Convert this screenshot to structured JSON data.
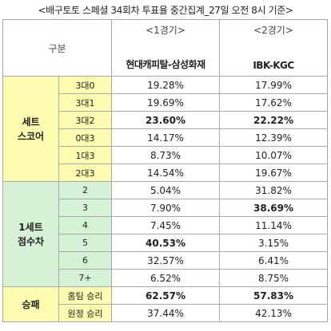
{
  "title": "<배구토토 스페셜 34회차 투표율 중간집계_27일 오전 8시 기준>",
  "header": {
    "label": "구분",
    "match1_ord": "<1경기>",
    "match1_teams": "현대캐피탈-삼성화재",
    "match2_ord": "<2경기>",
    "match2_teams": "IBK-KGC"
  },
  "groups": [
    {
      "label_lines": [
        "세트",
        "스코어"
      ],
      "rows": [
        {
          "label": "3대0",
          "m1": "19.28%",
          "m2": "17.99%"
        },
        {
          "label": "3대1",
          "m1": "19.69%",
          "m2": "17.62%"
        },
        {
          "label": "3대2",
          "m1": "23.60%",
          "m2": "22.22%"
        },
        {
          "label": "0대3",
          "m1": "14.17%",
          "m2": "12.39%"
        },
        {
          "label": "1대3",
          "m1": "8.73%",
          "m2": "10.07%"
        },
        {
          "label": "2대3",
          "m1": "14.54%",
          "m2": "19.67%"
        }
      ]
    },
    {
      "label_lines": [
        "1세트",
        "점수차"
      ],
      "rows": [
        {
          "label": "2",
          "m1": "5.04%",
          "m2": "31.82%"
        },
        {
          "label": "3",
          "m1": "7.90%",
          "m2": "38.69%"
        },
        {
          "label": "4",
          "m1": "7.45%",
          "m2": "11.14%"
        },
        {
          "label": "5",
          "m1": "40.53%",
          "m2": "3.15%"
        },
        {
          "label": "6",
          "m1": "32.57%",
          "m2": "6.41%"
        },
        {
          "label": "7+",
          "m1": "6.52%",
          "m2": "8.75%"
        }
      ]
    },
    {
      "label_lines": [
        "승패"
      ],
      "rows": [
        {
          "label": "홈팀 승리",
          "m1": "62.57%",
          "m2": "57.83%"
        },
        {
          "label": "원정 승리",
          "m1": "37.44%",
          "m2": "42.13%"
        }
      ]
    }
  ],
  "colors": {
    "yellow": "#fdfbb0",
    "green": "#d6f2d6",
    "border": "#a9a9a9"
  }
}
